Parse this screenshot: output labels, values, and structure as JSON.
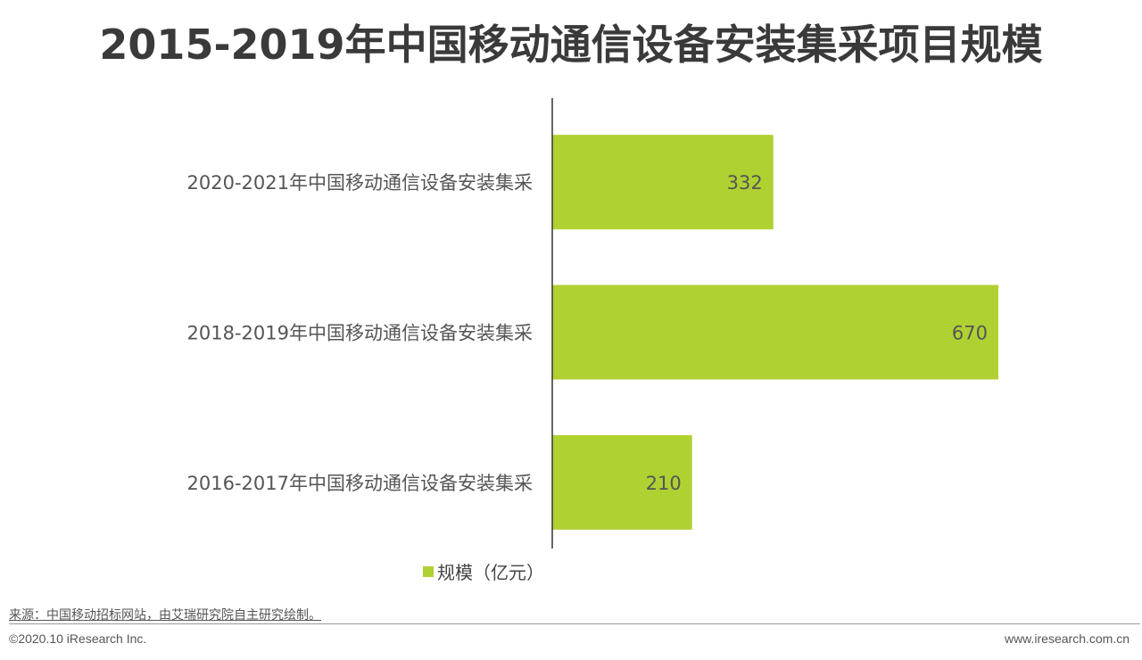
{
  "title": "2015-2019年中国移动通信设备安装集采项目规模",
  "chart_data": {
    "type": "bar",
    "orientation": "horizontal",
    "categories": [
      "2020-2021年中国移动通信设备安装集采",
      "2018-2019年中国移动通信设备安装集采",
      "2016-2017年中国移动通信设备安装集采"
    ],
    "series": [
      {
        "name": "规模（亿元）",
        "values": [
          332,
          670,
          210
        ],
        "color": "#b0d132"
      }
    ],
    "xlim": [
      0,
      800
    ],
    "grid": false,
    "legend": "bottom",
    "data_labels": true
  },
  "footer": {
    "source": "来源：中国移动招标网站，由艾瑞研究院自主研究绘制。",
    "copyright": "©2020.10 iResearch Inc.",
    "website": "www.iresearch.com.cn"
  }
}
